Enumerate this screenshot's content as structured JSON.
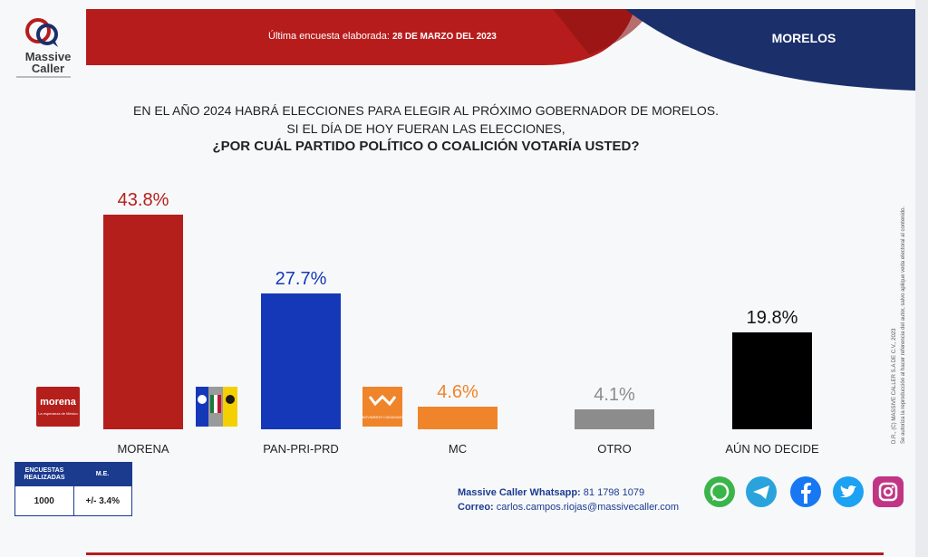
{
  "header": {
    "survey_label": "Última encuesta elaborada:",
    "survey_date": "28 DE MARZO DEL 2023",
    "region": "MORELOS",
    "brand_line1": "Massive",
    "brand_line2": "Caller"
  },
  "question": {
    "line1": "EN EL AÑO 2024 HABRÁ ELECCIONES PARA ELEGIR AL PRÓXIMO GOBERNADOR DE MORELOS.",
    "line2": "SI EL DÍA DE HOY FUERAN LAS ELECCIONES,",
    "line3": "¿POR CUÁL PARTIDO POLÍTICO O COALICIÓN VOTARÍA USTED?"
  },
  "chart_data": {
    "type": "bar",
    "categories": [
      "MORENA",
      "PAN-PRI-PRD",
      "MC",
      "OTRO",
      "AÚN NO DECIDE"
    ],
    "values": [
      43.8,
      27.7,
      4.6,
      4.1,
      19.8
    ],
    "value_labels": [
      "43.8%",
      "27.7%",
      "4.6%",
      "4.1%",
      "19.8%"
    ],
    "colors": [
      "#b41f1c",
      "#1538b8",
      "#f0842b",
      "#8c8c8c",
      "#000000"
    ],
    "label_colors": [
      "#b41f1c",
      "#1538b8",
      "#f0842b",
      "#8c8c8c",
      "#111111"
    ],
    "ylim": [
      0,
      45
    ],
    "xlabel": "",
    "ylabel": ""
  },
  "logos": {
    "morena_name": "morena",
    "morena_tagline": "La esperanza de México",
    "mc_name": "MOVIMIENTO CIUDADANO"
  },
  "table": {
    "col1_head": "ENCUESTAS REALIZADAS",
    "col2_head": "M.E.",
    "col1_value": "1000",
    "col2_value": "+/- 3.4%"
  },
  "contact": {
    "whatsapp_label": "Massive Caller Whatsapp:",
    "whatsapp_number": "81 1798  1079",
    "email_label": "Correo:",
    "email": "carlos.campos.riojas@massivecaller.com"
  },
  "credit": {
    "line1": "D.R., (C) MASSIVE CALLER S.A DE C.V., 2023",
    "line2": "Se autoriza la reproducción al hacer referencia del autor, salvo aplique veda electoral al contenido."
  },
  "social_icons": [
    "whatsapp-icon",
    "telegram-icon",
    "facebook-icon",
    "twitter-icon",
    "instagram-icon"
  ],
  "colors": {
    "brand_red": "#b71c1c",
    "brand_navy": "#1b2f6b"
  }
}
